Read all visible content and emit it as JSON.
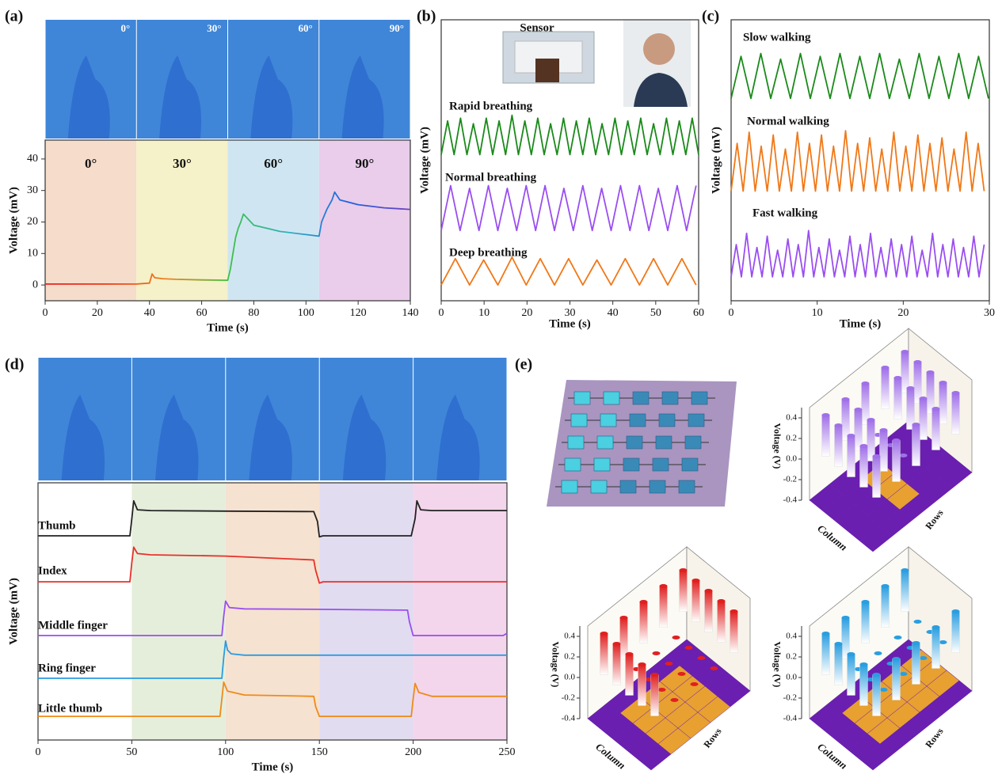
{
  "chart_data": [
    {
      "type": "line",
      "panel_label": "(a)",
      "photo_labels": [
        "0°",
        "30°",
        "60°",
        "90°"
      ],
      "xlabel": "Time (s)",
      "ylabel": "Voltage (mV)",
      "xlim": [
        0,
        140
      ],
      "ylim": [
        -5,
        46
      ],
      "xticks": [
        0,
        20,
        40,
        60,
        80,
        100,
        120,
        140
      ],
      "yticks": [
        0,
        10,
        20,
        30,
        40
      ],
      "regions": [
        {
          "x0": 0,
          "x1": 35,
          "color": "#f6dccb",
          "label": "0°"
        },
        {
          "x0": 35,
          "x1": 70,
          "color": "#f5f1c8",
          "label": "30°"
        },
        {
          "x0": 70,
          "x1": 105,
          "color": "#cfe6f2",
          "label": "60°"
        },
        {
          "x0": 105,
          "x1": 140,
          "color": "#e9cdea",
          "label": "90°"
        }
      ],
      "series": [
        {
          "gradient": [
            "#e82020",
            "#e83a18",
            "#f08020",
            "#40c040",
            "#30b0c0",
            "#2060e0",
            "#7040c0"
          ],
          "x": [
            0,
            35,
            40,
            41,
            42,
            45,
            50,
            60,
            70,
            71,
            72,
            73,
            74,
            75,
            76,
            80,
            90,
            100,
            105,
            106,
            107,
            108,
            110,
            111,
            113,
            120,
            130,
            140
          ],
          "values": [
            0.3,
            0.3,
            0.6,
            3.5,
            2.3,
            2,
            1.8,
            1.6,
            1.5,
            5,
            10,
            15,
            18,
            20,
            22.5,
            19,
            17,
            16,
            15.5,
            20,
            22,
            24,
            27,
            29.5,
            27,
            25.5,
            24.5,
            24
          ]
        }
      ]
    },
    {
      "type": "line",
      "panel_label": "(b)",
      "annotations": [
        "Sensor"
      ],
      "xlabel": "Time (s)",
      "ylabel": "Voltage (mV)",
      "xlim": [
        0,
        60
      ],
      "ylim": [
        0,
        10
      ],
      "xticks": [
        0,
        10,
        20,
        30,
        40,
        50,
        60
      ],
      "series": [
        {
          "name": "Rapid breathing",
          "color": "#1a8a1a",
          "x": [
            0,
            1.5,
            3,
            4.5,
            6,
            7.5,
            9,
            10.5,
            12,
            13.5,
            15,
            16.5,
            18,
            19.5,
            21,
            22.5,
            24,
            25.5,
            27,
            28.5,
            30,
            31.5,
            33,
            34.5,
            36,
            37.5,
            39,
            40.5,
            42,
            43.5,
            45,
            46.5,
            48,
            49.5,
            51,
            52.5,
            54,
            55.5,
            57,
            58.5,
            60
          ],
          "values": [
            5.2,
            6.4,
            5.2,
            6.5,
            5.2,
            6.3,
            5.2,
            6.5,
            5.2,
            6.4,
            5.2,
            6.6,
            5.2,
            6.4,
            5.2,
            6.5,
            5.2,
            6.3,
            5.2,
            6.5,
            5.2,
            6.4,
            5.2,
            6.5,
            5.2,
            6.3,
            5.2,
            6.5,
            5.2,
            6.4,
            5.2,
            6.5,
            5.2,
            6.3,
            5.2,
            6.5,
            5.2,
            6.4,
            5.2,
            6.5,
            5.2
          ]
        },
        {
          "name": "Normal breathing",
          "color": "#9a4ef0",
          "x": [
            0,
            2.2,
            4.4,
            6.6,
            8.8,
            11,
            13.2,
            15.4,
            17.6,
            19.8,
            22,
            24.2,
            26.4,
            28.6,
            30.8,
            33,
            35.2,
            37.4,
            39.6,
            41.8,
            44,
            46.2,
            48.4,
            50.6,
            52.8,
            55,
            57.2,
            59.4
          ],
          "values": [
            2.5,
            4.1,
            2.5,
            4.0,
            2.5,
            4.1,
            2.5,
            4.0,
            2.5,
            4.1,
            2.5,
            4.1,
            2.5,
            4.0,
            2.5,
            4.1,
            2.5,
            4.0,
            2.5,
            4.1,
            2.5,
            4.1,
            2.5,
            4.0,
            2.5,
            4.1,
            2.5,
            4.1
          ]
        },
        {
          "name": "Deep breathing",
          "color": "#f07818",
          "x": [
            0,
            3.3,
            6.6,
            9.9,
            13.2,
            16.5,
            19.8,
            23.1,
            26.4,
            29.7,
            33,
            36.3,
            39.6,
            42.9,
            46.2,
            49.5,
            52.8,
            56.1,
            59.4
          ],
          "values": [
            0.56,
            1.5,
            0.56,
            1.45,
            0.56,
            1.55,
            0.56,
            1.5,
            0.56,
            1.5,
            0.56,
            1.45,
            0.56,
            1.5,
            0.56,
            1.5,
            0.56,
            1.5,
            0.56
          ]
        }
      ]
    },
    {
      "type": "line",
      "panel_label": "(c)",
      "xlabel": "Time (s)",
      "ylabel": "Voltage (mV)",
      "xlim": [
        0,
        30
      ],
      "ylim": [
        0,
        10
      ],
      "xticks": [
        0,
        10,
        20,
        30
      ],
      "series": [
        {
          "name": "Slow walking",
          "color": "#1a8a1a",
          "x": [
            0,
            1.15,
            2.3,
            3.45,
            4.6,
            5.75,
            6.9,
            8.05,
            9.2,
            10.35,
            11.5,
            12.65,
            13.8,
            14.95,
            16.1,
            17.25,
            18.4,
            19.55,
            20.7,
            21.85,
            23,
            24.15,
            25.3,
            26.45,
            27.6,
            28.75,
            29.9
          ],
          "values": [
            7.2,
            8.7,
            7.2,
            8.8,
            7.2,
            8.6,
            7.2,
            8.8,
            7.2,
            8.7,
            7.2,
            8.8,
            7.2,
            8.7,
            7.2,
            8.8,
            7.2,
            8.6,
            7.2,
            8.8,
            7.2,
            8.7,
            7.2,
            8.8,
            7.2,
            8.7,
            7.2
          ]
        },
        {
          "name": "Normal walking",
          "color": "#f07818",
          "x": [
            0,
            0.7,
            1.4,
            2.1,
            2.8,
            3.5,
            4.2,
            4.9,
            5.6,
            6.3,
            7,
            7.7,
            8.4,
            9.1,
            9.8,
            10.5,
            11.2,
            11.9,
            12.6,
            13.3,
            14,
            14.7,
            15.4,
            16.1,
            16.8,
            17.5,
            18.2,
            18.9,
            19.6,
            20.3,
            21,
            21.7,
            22.4,
            23.1,
            23.8,
            24.5,
            25.2,
            25.9,
            26.6,
            27.3,
            28,
            28.7,
            29.4
          ],
          "values": [
            3.9,
            5.6,
            3.9,
            6.0,
            3.9,
            5.5,
            3.9,
            5.9,
            3.9,
            5.4,
            3.9,
            6.0,
            3.9,
            5.6,
            3.9,
            5.9,
            3.9,
            5.5,
            3.9,
            6.05,
            3.9,
            5.6,
            3.9,
            5.8,
            3.9,
            5.4,
            3.9,
            6.0,
            3.9,
            5.5,
            3.9,
            5.9,
            3.9,
            5.6,
            3.9,
            5.8,
            3.9,
            5.4,
            3.9,
            6.0,
            3.9,
            5.6,
            3.9
          ]
        },
        {
          "name": "Fast walking",
          "color": "#9a4ef0",
          "x": [
            0,
            0.6,
            1.2,
            1.8,
            2.4,
            3,
            3.6,
            4.2,
            4.8,
            5.4,
            6,
            6.6,
            7.2,
            7.8,
            8.4,
            9,
            9.6,
            10.2,
            10.8,
            11.4,
            12,
            12.6,
            13.2,
            13.8,
            14.4,
            15,
            15.6,
            16.2,
            16.8,
            17.4,
            18,
            18.6,
            19.2,
            19.8,
            20.4,
            21,
            21.6,
            22.2,
            22.8,
            23.4,
            24,
            24.6,
            25.2,
            25.8,
            26.4,
            27,
            27.6,
            28.2,
            28.8,
            29.4
          ],
          "values": [
            0.85,
            2.0,
            0.85,
            2.4,
            0.85,
            1.9,
            0.85,
            2.3,
            0.85,
            1.8,
            0.85,
            2.2,
            0.85,
            2.0,
            0.85,
            2.5,
            0.85,
            1.9,
            0.85,
            2.2,
            0.85,
            1.8,
            0.85,
            2.3,
            0.85,
            2.0,
            0.85,
            2.4,
            0.85,
            1.9,
            0.85,
            2.2,
            0.85,
            2.0,
            0.85,
            2.3,
            0.85,
            1.8,
            0.85,
            2.4,
            0.85,
            2.0,
            0.85,
            2.2,
            0.85,
            1.9,
            0.85,
            2.3,
            0.85,
            2.0
          ]
        }
      ]
    },
    {
      "type": "line",
      "panel_label": "(d)",
      "xlabel": "Time (s)",
      "ylabel": "Voltage (mV)",
      "xlim": [
        0,
        250
      ],
      "ylim": [
        0,
        10
      ],
      "xticks": [
        0,
        50,
        100,
        150,
        200,
        250
      ],
      "regions": [
        {
          "x0": 50,
          "x1": 100,
          "color": "#e5eedb"
        },
        {
          "x0": 100,
          "x1": 150,
          "color": "#f5e2d0"
        },
        {
          "x0": 150,
          "x1": 200,
          "color": "#e1dcf0"
        },
        {
          "x0": 200,
          "x1": 250,
          "color": "#f3d6ec"
        }
      ],
      "series": [
        {
          "name": "Thumb",
          "color": "#222222",
          "x": [
            0,
            49,
            50,
            51,
            53,
            60,
            100,
            147,
            149,
            150,
            152,
            160,
            199,
            201,
            202,
            204,
            210,
            250
          ],
          "values": [
            7.94,
            7.94,
            8.6,
            9.3,
            8.95,
            8.92,
            8.9,
            8.88,
            8.5,
            7.9,
            7.94,
            7.94,
            7.94,
            8.6,
            9.3,
            8.95,
            8.92,
            8.92
          ]
        },
        {
          "name": "Index",
          "color": "#e8302a",
          "x": [
            0,
            49,
            50,
            51,
            53,
            60,
            100,
            147,
            148,
            150,
            152,
            160,
            250
          ],
          "values": [
            6.15,
            6.15,
            6.9,
            7.5,
            7.25,
            7.2,
            7.15,
            7.0,
            6.6,
            6.1,
            6.15,
            6.15,
            6.15
          ]
        },
        {
          "name": "Middle finger",
          "color": "#9a4ef0",
          "x": [
            0,
            98,
            99,
            100,
            102,
            110,
            150,
            197,
            198,
            200,
            202,
            210,
            248,
            250
          ],
          "values": [
            4.06,
            4.06,
            4.8,
            5.4,
            5.15,
            5.1,
            5.08,
            5.05,
            4.6,
            4.06,
            4.06,
            4.06,
            4.06,
            4.15
          ]
        },
        {
          "name": "Ring finger",
          "color": "#2b9be0",
          "x": [
            0,
            98,
            99,
            100,
            101,
            103,
            110,
            150,
            250
          ],
          "values": [
            2.4,
            2.4,
            3.2,
            3.85,
            3.5,
            3.35,
            3.3,
            3.3,
            3.3
          ]
        },
        {
          "name": "Little thumb",
          "color": "#f08a18",
          "x": [
            0,
            97,
            98,
            99,
            101,
            110,
            147,
            148,
            150,
            152,
            199,
            200,
            201,
            203,
            210,
            250
          ],
          "values": [
            0.92,
            0.92,
            1.6,
            2.25,
            1.9,
            1.75,
            1.7,
            1.3,
            0.92,
            0.92,
            0.92,
            1.6,
            2.2,
            1.85,
            1.7,
            1.7
          ]
        }
      ]
    },
    {
      "type": "bar3d",
      "panel_label": "(e)",
      "color": "#a070e8",
      "floor_colors": [
        "#e8a030",
        "#6a1fb0"
      ],
      "zlabel": "Voltage (V)",
      "xlabel": "Column",
      "ylabel": "Rows",
      "zlim": [
        -0.4,
        0.5
      ],
      "zticks": [
        -0.4,
        -0.2,
        {
          "value": 0,
          "label": "0.0"
        },
        0.2,
        0.4
      ],
      "values": [
        [
          0.4,
          0.4,
          0.4,
          0.4,
          0.4
        ],
        [
          0.4,
          0.4,
          0.4,
          0.4,
          0.4
        ],
        [
          0.4,
          0,
          0,
          0,
          0.4
        ],
        [
          0.4,
          0.4,
          0.4,
          0.4,
          0.4
        ],
        [
          0.4,
          0.4,
          0.4,
          0.4,
          0.4
        ]
      ]
    },
    {
      "type": "bar3d",
      "color": "#e02020",
      "floor_colors": [
        "#e8a030",
        "#6a1fb0"
      ],
      "zlabel": "Voltage (V)",
      "xlabel": "Column",
      "ylabel": "Rows",
      "zlim": [
        -0.4,
        0.5
      ],
      "zticks": [
        -0.4,
        -0.2,
        {
          "value": 0,
          "label": "0.0"
        },
        0.2,
        0.4
      ],
      "values": [
        [
          0.4,
          0.4,
          0.4,
          0.4,
          0.4
        ],
        [
          0.4,
          0,
          0,
          0,
          0
        ],
        [
          0.4,
          0,
          0,
          0,
          0
        ],
        [
          0.4,
          0,
          0,
          0,
          0
        ],
        [
          0.4,
          0.4,
          0.4,
          0.4,
          0.4
        ]
      ]
    },
    {
      "type": "bar3d",
      "color": "#2a9ee0",
      "floor_colors": [
        "#e8a030",
        "#6a1fb0"
      ],
      "zlabel": "Voltage (V)",
      "xlabel": "Column",
      "ylabel": "Rows",
      "zlim": [
        -0.4,
        0.5
      ],
      "zticks": [
        -0.4,
        -0.2,
        {
          "value": 0,
          "label": "0.0"
        },
        0.2,
        0.4
      ],
      "values": [
        [
          0.4,
          0,
          0,
          0,
          0.4
        ],
        [
          0.4,
          0,
          0,
          0,
          0.4
        ],
        [
          0.4,
          0,
          0,
          0,
          0.4
        ],
        [
          0.4,
          0,
          0,
          0,
          0.4
        ],
        [
          0.4,
          0.4,
          0.4,
          0.4,
          0.4
        ]
      ]
    }
  ]
}
